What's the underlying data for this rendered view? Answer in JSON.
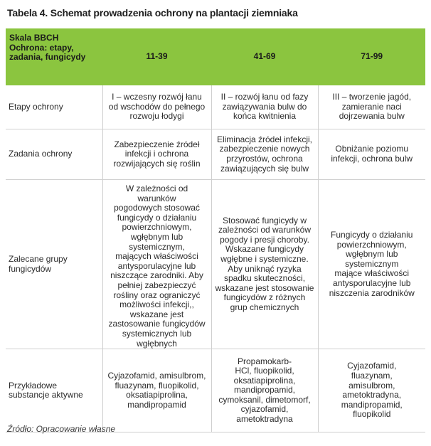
{
  "title": "Tabela 4. Schemat prowadzenia ochrony na plantacji ziemniaka",
  "header": {
    "corner": "Skala BBCH\nOchrona: etapy,\nzadania, fungicydy",
    "columns": [
      "11-39",
      "41-69",
      "71-99"
    ]
  },
  "rows": [
    {
      "label": "Etapy ochrony",
      "cells": [
        "I – wczesny rozwój łanu\nod wschodów do pełnego\nrozwoju łodygi",
        "II – rozwój łanu od fazy\nzawiązywania bulw do\nkońca kwitnienia",
        "III – tworzenie jagód,\nzamieranie naci\ndojrzewania bulw"
      ]
    },
    {
      "label": "Zadania ochrony",
      "cells": [
        "Zabezpieczenie źródeł\ninfekcji i ochrona\nrozwijających się roślin",
        "Eliminacja źródeł infekcji,\nzabezpieczenie nowych\nprzyrostów, ochrona\nzawiązujących się bulw",
        "Obniżanie poziomu\ninfekcji, ochrona bulw"
      ]
    },
    {
      "label": "Zalecane grupy\nfungicydów",
      "cells": [
        "W zależności od warunków\npogodowych stosować\nfungicydy o działaniu\npowierzchniowym,\nwgłębnym lub\nsystemicznym,\nmających właściwości\nantysporulacyjne lub\nniszczące zarodniki. Aby\npełniej zabezpieczyć\nrośliny oraz ograniczyć\nmożliwości infekcji,,\nwskazane jest\nzastosowanie fungicydów\nsystemicznych lub\nwgłębnych",
        "Stosować fungicydy w\nzależności od warunków\npogody i presji choroby.\nWskazane fungicydy\nwgłębne i systemiczne.\nAby uniknąć ryzyka\nspadku skuteczności,\nwskazane jest stosowanie\nfungicydów z różnych\ngrup chemicznych",
        "Fungicydy o działaniu\npowierzchniowym,\nwgłębnym lub\nsystemicznym\nmające właściwości\nantysporulacyjne lub\nniszczenia zarodników"
      ]
    },
    {
      "label": "Przykładowe\nsubstancje aktywne",
      "cells": [
        "Cyjazofamid, amisulbrom,\nfluazynam, fluopikolid,\noksatiapiprolina,\nmandipropamid",
        "Propamokarb-\nHCl, fluopikolid,\noksatiapiprolina,\nmandipropamid,\ncymoksanil, dimetomorf,\ncyjazofamid,\nametoktradyna",
        "Cyjazofamid,\nfluazynam,\namisulbrom,\nametoktradyna,\nmandipropamid,\nfluopikolid"
      ]
    }
  ],
  "source": "Źródło: Opracowanie własne"
}
